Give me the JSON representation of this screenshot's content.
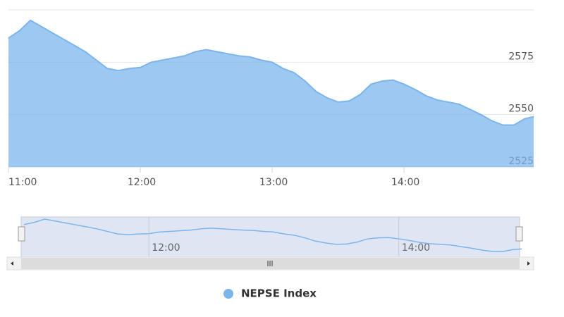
{
  "chart_data": {
    "type": "area",
    "color": "#7cb5ec",
    "x": [
      "11:00",
      "11:05",
      "11:10",
      "11:15",
      "11:20",
      "11:25",
      "11:30",
      "11:35",
      "11:40",
      "11:45",
      "11:50",
      "11:55",
      "12:00",
      "12:05",
      "12:10",
      "12:15",
      "12:20",
      "12:25",
      "12:30",
      "12:35",
      "12:40",
      "12:45",
      "12:50",
      "12:55",
      "13:00",
      "13:05",
      "13:10",
      "13:15",
      "13:20",
      "13:25",
      "13:30",
      "13:35",
      "13:40",
      "13:45",
      "13:50",
      "13:55",
      "14:00",
      "14:05",
      "14:10",
      "14:15",
      "14:20",
      "14:25",
      "14:30",
      "14:35",
      "14:40",
      "14:45",
      "14:50",
      "14:55",
      "14:59"
    ],
    "series": [
      {
        "name": "NEPSE Index",
        "color": "#7cb5ec",
        "values": [
          2586.5,
          2590,
          2595,
          2592,
          2589,
          2586,
          2583,
          2580,
          2576,
          2572,
          2571,
          2572,
          2572.5,
          2575,
          2576,
          2577,
          2578,
          2580,
          2581,
          2580,
          2579,
          2578,
          2577.5,
          2576,
          2575,
          2572,
          2570,
          2566,
          2561,
          2558,
          2556,
          2556.5,
          2559.5,
          2564.5,
          2566,
          2566.5,
          2564.5,
          2562,
          2559,
          2557,
          2556,
          2555,
          2552.5,
          2550,
          2547,
          2545,
          2545,
          2548,
          2549
        ]
      }
    ],
    "xlim": [
      "11:00",
      "14:59"
    ],
    "xticks": [
      "11:00",
      "12:00",
      "13:00",
      "14:00"
    ],
    "ylim": [
      2525,
      2600
    ],
    "yticks": [
      2525,
      2550,
      2575
    ],
    "grid": true,
    "navigator": {
      "xticks": [
        "12:00",
        "14:00"
      ]
    }
  }
}
